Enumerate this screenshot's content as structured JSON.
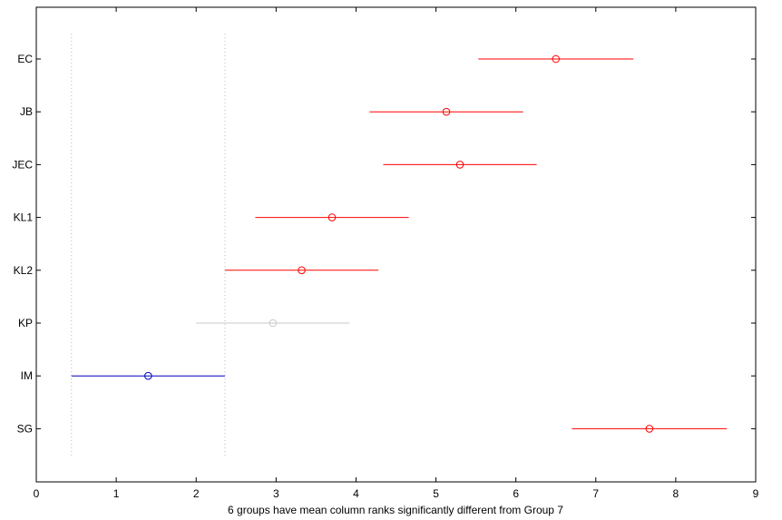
{
  "chart_data": {
    "type": "scatter",
    "subtype": "multiple-comparison-intervals",
    "xlabel": "6 groups have mean column ranks significantly different from Group 7",
    "ylabel": "",
    "title": "",
    "xlim": [
      0,
      9
    ],
    "xticks": [
      0,
      1,
      2,
      3,
      4,
      5,
      6,
      7,
      8,
      9
    ],
    "grid": false,
    "groups": [
      {
        "label": "EC",
        "mean": 6.5,
        "lower": 5.53,
        "upper": 7.47,
        "color": "#ff0000"
      },
      {
        "label": "JB",
        "mean": 5.13,
        "lower": 4.17,
        "upper": 6.09,
        "color": "#ff0000"
      },
      {
        "label": "JEC",
        "mean": 5.3,
        "lower": 4.34,
        "upper": 6.26,
        "color": "#ff0000"
      },
      {
        "label": "KL1",
        "mean": 3.7,
        "lower": 2.74,
        "upper": 4.66,
        "color": "#ff0000"
      },
      {
        "label": "KL2",
        "mean": 3.32,
        "lower": 2.36,
        "upper": 4.28,
        "color": "#ff0000"
      },
      {
        "label": "KP",
        "mean": 2.96,
        "lower": 2.0,
        "upper": 3.92,
        "color": "#c8c8c8"
      },
      {
        "label": "IM",
        "mean": 1.4,
        "lower": 0.44,
        "upper": 2.36,
        "color": "#0000c0"
      },
      {
        "label": "SG",
        "mean": 7.67,
        "lower": 6.7,
        "upper": 8.64,
        "color": "#ff0000"
      }
    ],
    "reference_lines": [
      0.44,
      2.36
    ]
  }
}
